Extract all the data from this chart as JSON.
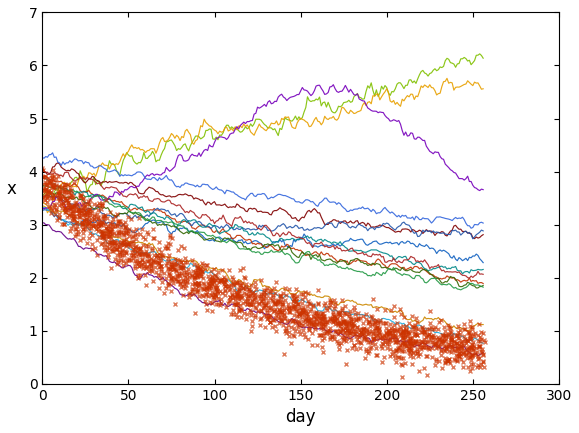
{
  "xlabel": "day",
  "ylabel": "x",
  "xlim": [
    0,
    300
  ],
  "ylim": [
    0,
    7
  ],
  "xticks": [
    0,
    50,
    100,
    150,
    200,
    250,
    300
  ],
  "yticks": [
    0,
    1,
    2,
    3,
    4,
    5,
    6,
    7
  ],
  "n_days": 257,
  "n_sims": 15,
  "sim_colors": [
    "#80c000",
    "#e8a000",
    "#1060c0",
    "#20aadd",
    "#800000",
    "#c03000",
    "#2255aa",
    "#008888",
    "#7700bb",
    "#336600",
    "#3366dd",
    "#aa2222",
    "#cc8800",
    "#229944",
    "#660088"
  ],
  "real_data_color": "#cc3300",
  "real_data_marker": "x",
  "n_real": 2000,
  "seed": 7
}
